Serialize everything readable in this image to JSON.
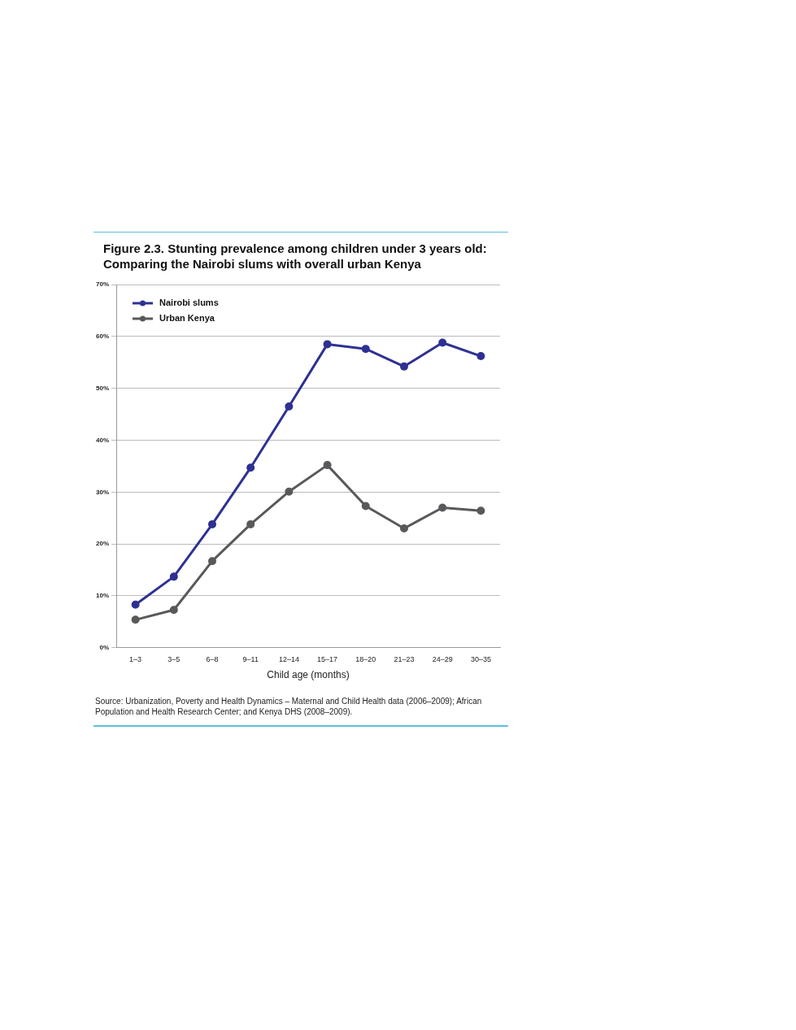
{
  "chart_data": {
    "type": "line",
    "title": "Figure 2.3.  Stunting prevalence among children under 3 years old: Comparing the Nairobi slums with overall urban Kenya",
    "xlabel": "Child age (months)",
    "categories": [
      "1–3",
      "3–5",
      "6–8",
      "9–11",
      "12–14",
      "15–17",
      "18–20",
      "21–23",
      "24–29",
      "30–35"
    ],
    "series": [
      {
        "name": "Nairobi slums",
        "color": "#2e3192",
        "values": [
          8.3,
          13.7,
          23.8,
          34.7,
          46.5,
          58.5,
          57.6,
          54.2,
          58.8,
          56.2
        ]
      },
      {
        "name": "Urban Kenya",
        "color": "#58595b",
        "values": [
          5.4,
          7.3,
          16.7,
          23.8,
          30.1,
          35.2,
          27.3,
          23.0,
          27.0,
          26.4
        ]
      }
    ],
    "ylim": [
      0,
      70
    ],
    "yticks": [
      {
        "value": 0,
        "label": "0%"
      },
      {
        "value": 10,
        "label": "10%"
      },
      {
        "value": 20,
        "label": "20%"
      },
      {
        "value": 30,
        "label": "30%"
      },
      {
        "value": 40,
        "label": "40%"
      },
      {
        "value": 50,
        "label": "50%"
      },
      {
        "value": 60,
        "label": "60%"
      },
      {
        "value": 70,
        "label": "70%"
      }
    ],
    "grid": "y",
    "legend": "top left",
    "marker": "circle",
    "line_style": "solid",
    "annotations": [
      "Source: Urbanization, Poverty and Health Dynamics – Maternal and Child Health data (2006–2009); African Population and Health Research Center; and Kenya DHS (2008–2009)."
    ]
  }
}
